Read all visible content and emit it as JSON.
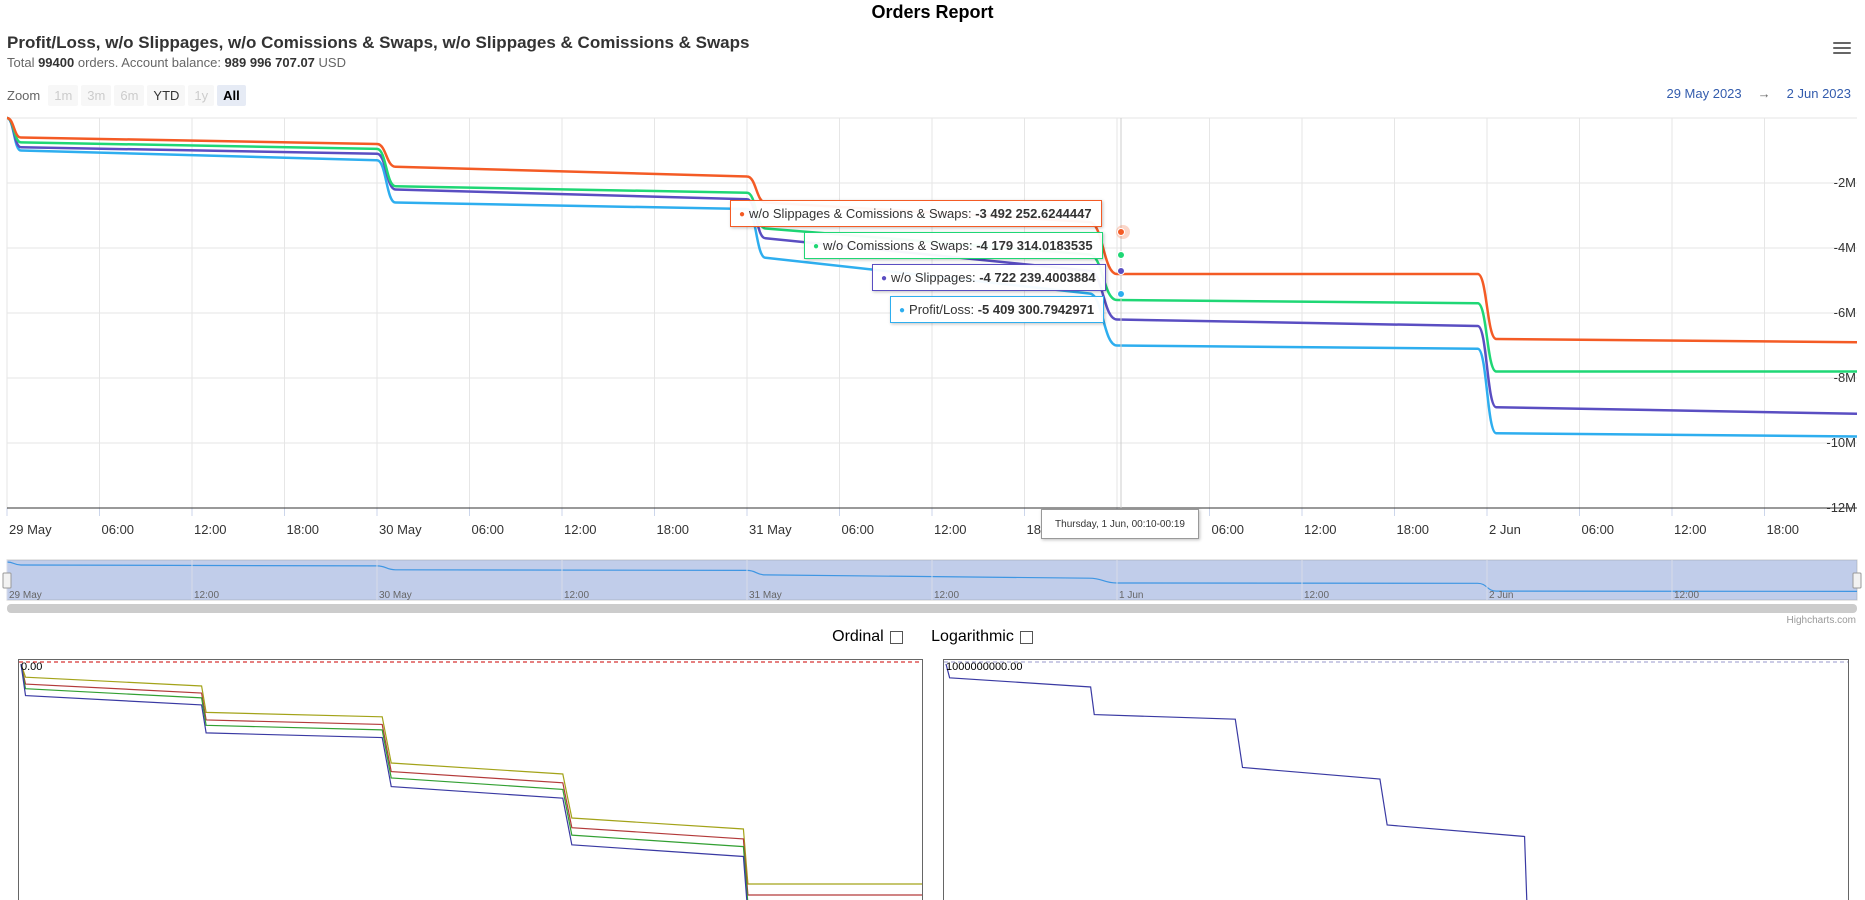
{
  "page_title": "Orders Report",
  "chart_title": "Profit/Loss, w/o Slippages, w/o Comissions & Swaps, w/o Slippages & Comissions & Swaps",
  "subtitle": {
    "total_prefix": "Total ",
    "orders_count": "99400",
    "orders_suffix": " orders. Account balance: ",
    "balance": "989 996 707.07",
    "currency": " USD"
  },
  "toolbar": {
    "zoom_label": "Zoom",
    "buttons": [
      {
        "label": "1m",
        "state": "disabled"
      },
      {
        "label": "3m",
        "state": "disabled"
      },
      {
        "label": "6m",
        "state": "disabled"
      },
      {
        "label": "YTD",
        "state": "enabled"
      },
      {
        "label": "1y",
        "state": "disabled"
      },
      {
        "label": "All",
        "state": "active"
      }
    ],
    "range_from": "29 May 2023",
    "range_arrow": "→",
    "range_to": "2 Jun 2023",
    "menu_icon": "hamburger-menu-icon"
  },
  "chart_data": {
    "type": "line",
    "x_tick_labels": [
      "29 May",
      "06:00",
      "12:00",
      "18:00",
      "30 May",
      "06:00",
      "12:00",
      "18:00",
      "31 May",
      "06:00",
      "12:00",
      "18:00",
      "1 Jun",
      "06:00",
      "12:00",
      "18:00",
      "2 Jun",
      "06:00",
      "12:00",
      "18:00"
    ],
    "y_tick_labels": [
      "-2M",
      "-4M",
      "-6M",
      "-8M",
      "-10M",
      "-12M"
    ],
    "ylim": [
      -12000000,
      0
    ],
    "grid": true,
    "series": [
      {
        "name": "w/o Slippages & Comissions & Swaps",
        "color": "#f45b25",
        "points": [
          [
            0,
            0
          ],
          [
            3,
            -600000
          ],
          [
            80,
            -800000
          ],
          [
            84,
            -1500000
          ],
          [
            160,
            -1800000
          ],
          [
            164,
            -2600000
          ],
          [
            234,
            -3200000
          ],
          [
            240,
            -4800000
          ],
          [
            318,
            -4800000
          ],
          [
            322,
            -6800000
          ],
          [
            400,
            -6900000
          ]
        ]
      },
      {
        "name": "w/o Comissions & Swaps",
        "color": "#1fd775",
        "points": [
          [
            0,
            0
          ],
          [
            3,
            -750000
          ],
          [
            80,
            -950000
          ],
          [
            84,
            -2100000
          ],
          [
            160,
            -2300000
          ],
          [
            164,
            -3400000
          ],
          [
            234,
            -4200000
          ],
          [
            240,
            -5600000
          ],
          [
            318,
            -5700000
          ],
          [
            322,
            -7800000
          ],
          [
            400,
            -7800000
          ]
        ]
      },
      {
        "name": "w/o Slippages",
        "color": "#5a4ec2",
        "points": [
          [
            0,
            0
          ],
          [
            3,
            -900000
          ],
          [
            80,
            -1100000
          ],
          [
            84,
            -2200000
          ],
          [
            160,
            -2500000
          ],
          [
            164,
            -3700000
          ],
          [
            234,
            -4700000
          ],
          [
            240,
            -6200000
          ],
          [
            318,
            -6400000
          ],
          [
            322,
            -8900000
          ],
          [
            400,
            -9100000
          ]
        ]
      },
      {
        "name": "Profit/Loss",
        "color": "#2eaeef",
        "points": [
          [
            0,
            0
          ],
          [
            3,
            -1000000
          ],
          [
            80,
            -1300000
          ],
          [
            84,
            -2600000
          ],
          [
            160,
            -2800000
          ],
          [
            164,
            -4300000
          ],
          [
            234,
            -5400000
          ],
          [
            240,
            -7000000
          ],
          [
            318,
            -7100000
          ],
          [
            322,
            -9700000
          ],
          [
            400,
            -9800000
          ]
        ]
      }
    ],
    "tooltip": {
      "x_label": "Thursday, 1 Jun, 00:10-00:19",
      "items": [
        {
          "name": "w/o Slippages & Comissions & Swaps",
          "value": "-3 492 252.6244447",
          "color": "#f45b25"
        },
        {
          "name": "w/o Comissions & Swaps",
          "value": "-4 179 314.0183535",
          "color": "#1fd775"
        },
        {
          "name": "w/o Slippages",
          "value": "-4 722 239.4003884",
          "color": "#5a4ec2"
        },
        {
          "name": "Profit/Loss",
          "value": "-5 409 300.7942971",
          "color": "#2eaeef"
        }
      ]
    },
    "navigator_labels": [
      "29 May",
      "12:00",
      "30 May",
      "12:00",
      "31 May",
      "12:00",
      "1 Jun",
      "12:00",
      "2 Jun",
      "12:00"
    ],
    "credits": "Highcharts.com"
  },
  "options": {
    "ordinal_label": "Ordinal",
    "ordinal_checked": false,
    "logarithmic_label": "Logarithmic",
    "logarithmic_checked": false
  },
  "mini_charts": [
    {
      "label": "0.00",
      "reference_line_color": "#cc0000",
      "series": [
        {
          "color": "#a3a319",
          "offset": 0,
          "extra": 0.0
        },
        {
          "color": "#b33a3a",
          "offset": 0.03,
          "extra": 0.02
        },
        {
          "color": "#33a033",
          "offset": 0.05,
          "extra": 0.04
        },
        {
          "color": "#3a3aa3",
          "offset": 0.08,
          "extra": 0.06
        }
      ]
    },
    {
      "label": "1000000000.00",
      "reference_line_color": "#9999cc",
      "series": [
        {
          "color": "#3a3aa3",
          "offset": 0,
          "extra": 0
        }
      ]
    }
  ]
}
